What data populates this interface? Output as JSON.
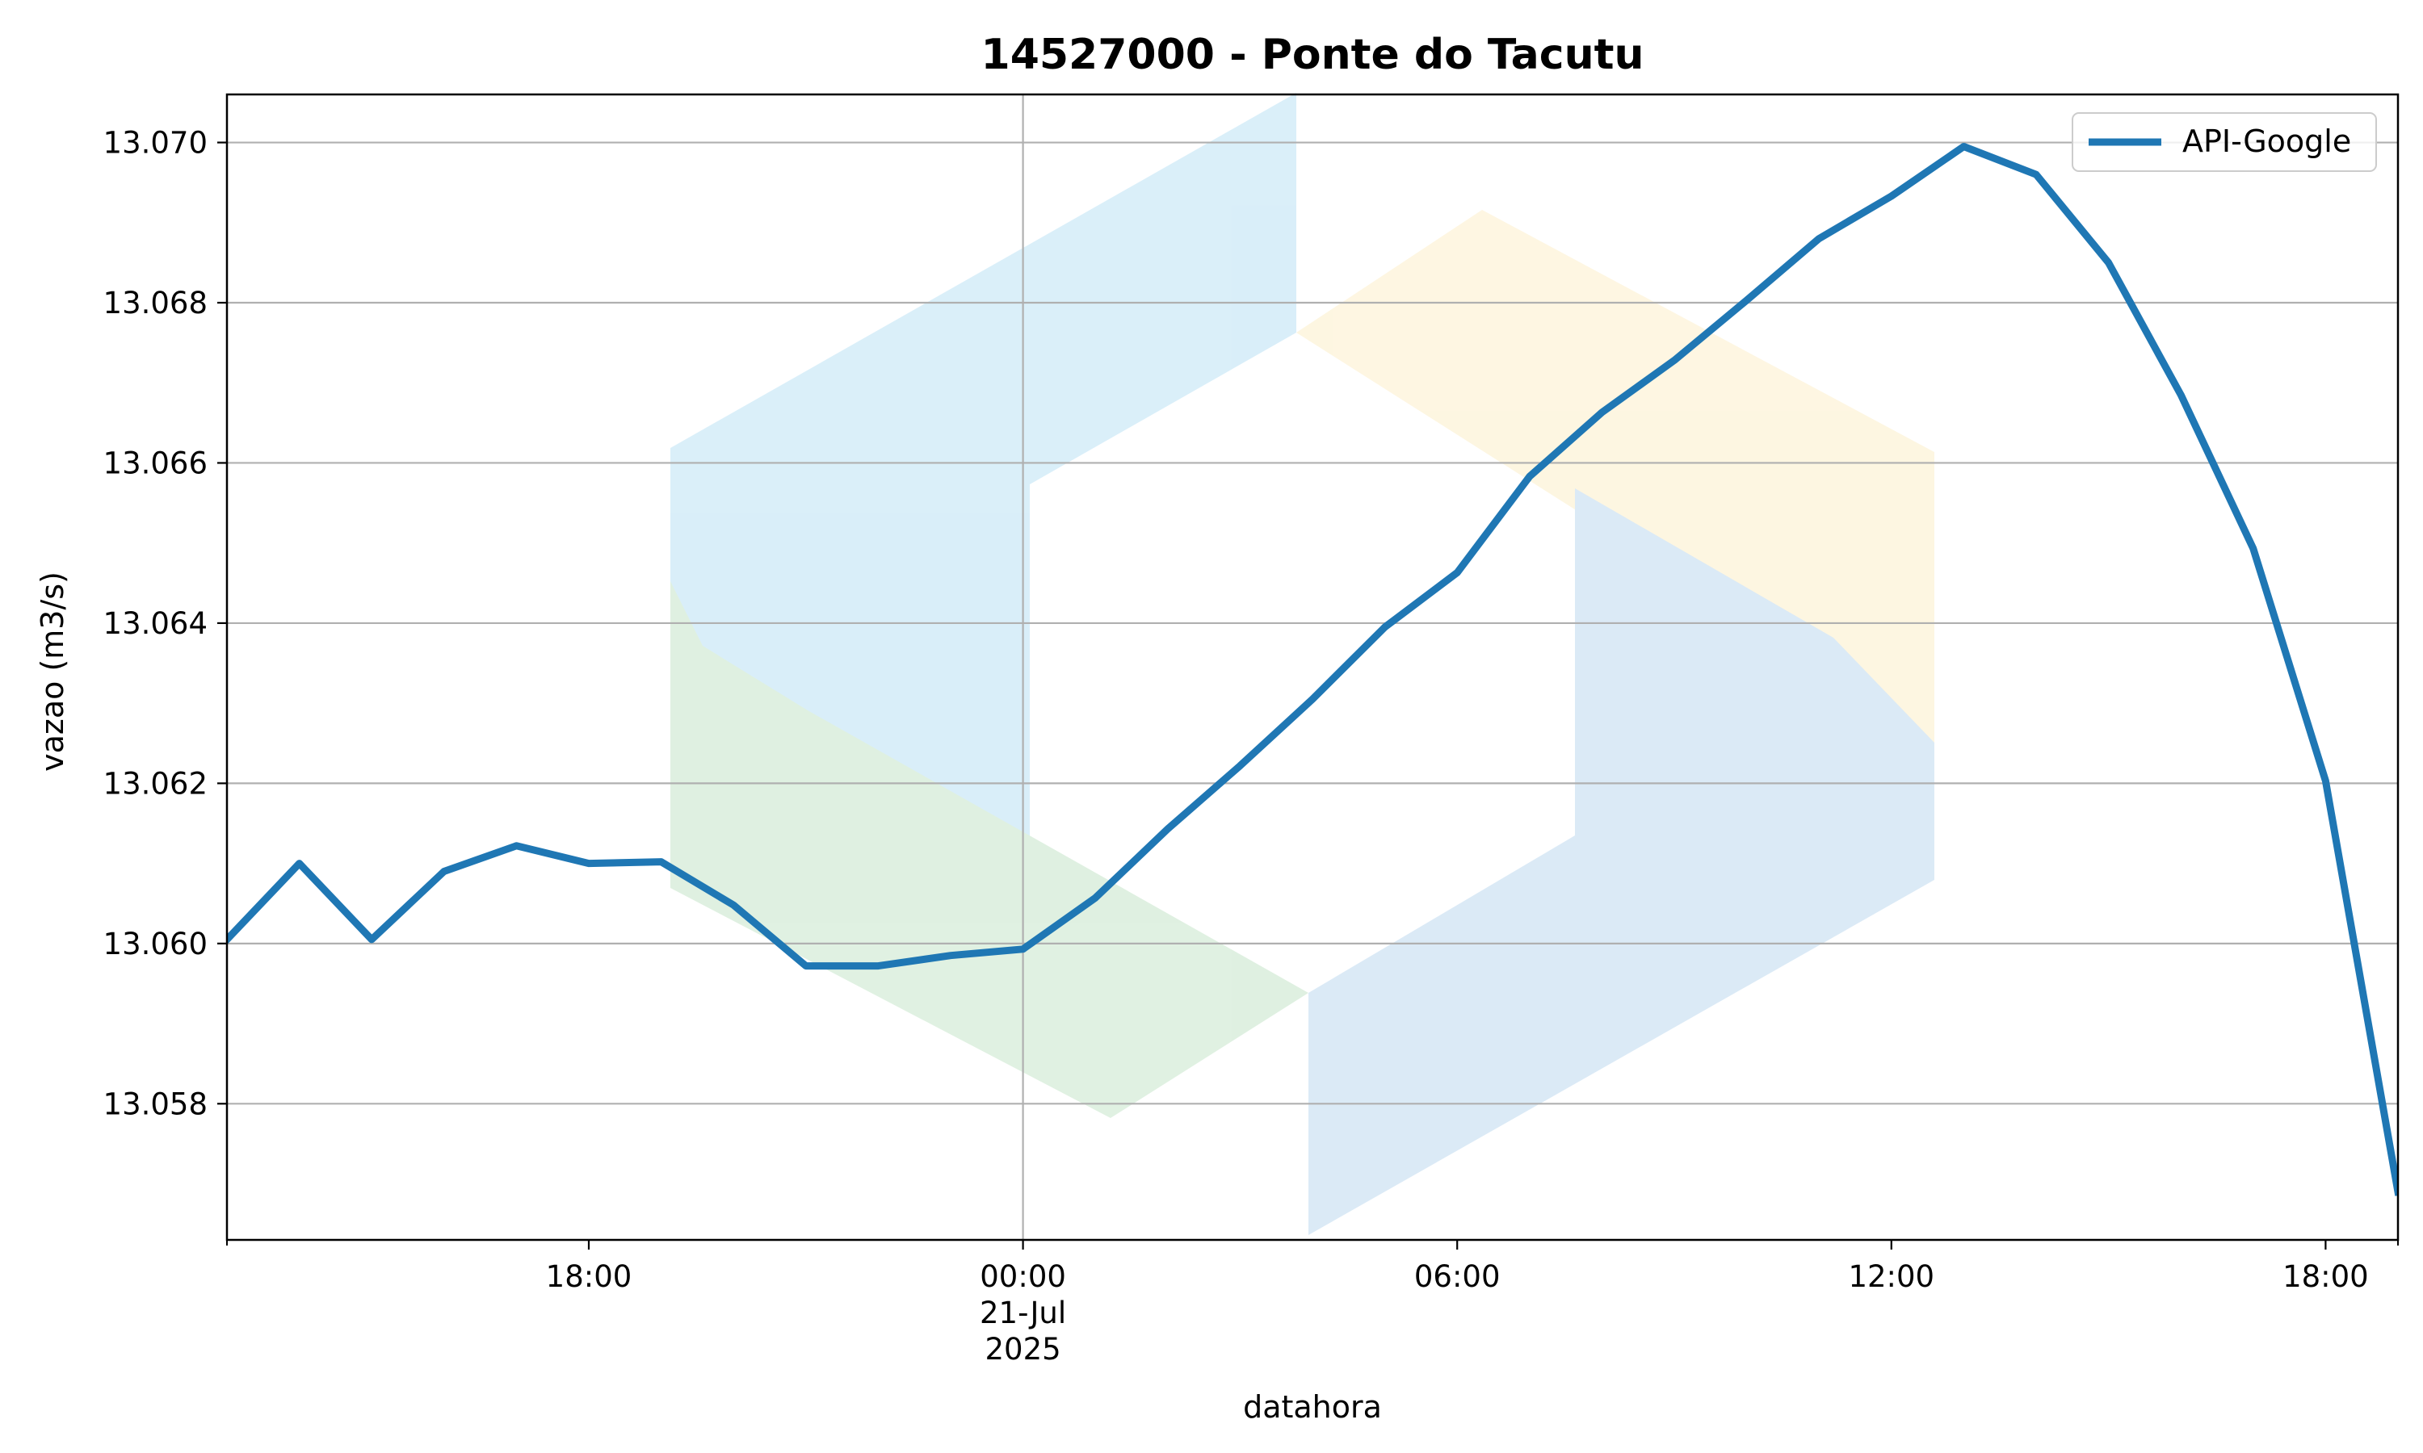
{
  "chart_data": {
    "type": "line",
    "title": "14527000 - Ponte do Tacutu",
    "xlabel": "datahora",
    "ylabel": "vazao (m3/s)",
    "xlim": [
      "2025-07-20T13:00",
      "2025-07-21T19:00"
    ],
    "ylim": [
      13.0563,
      13.0706
    ],
    "grid": true,
    "legend_position": "top-right",
    "x_ticks": [
      {
        "x": "2025-07-20T18:00",
        "lines": [
          "18:00"
        ]
      },
      {
        "x": "2025-07-21T00:00",
        "lines": [
          "00:00",
          "21-Jul",
          "2025"
        ]
      },
      {
        "x": "2025-07-21T06:00",
        "lines": [
          "06:00"
        ]
      },
      {
        "x": "2025-07-21T12:00",
        "lines": [
          "12:00"
        ]
      },
      {
        "x": "2025-07-21T18:00",
        "lines": [
          "18:00"
        ]
      }
    ],
    "y_ticks": [
      13.058,
      13.06,
      13.062,
      13.064,
      13.066,
      13.068,
      13.07
    ],
    "series": [
      {
        "name": "API-Google",
        "color": "#1f77b4",
        "points": [
          [
            "2025-07-20T13:00",
            13.06005
          ],
          [
            "2025-07-20T14:00",
            13.061
          ],
          [
            "2025-07-20T15:00",
            13.06005
          ],
          [
            "2025-07-20T16:00",
            13.0609
          ],
          [
            "2025-07-20T17:00",
            13.06122
          ],
          [
            "2025-07-20T18:00",
            13.061
          ],
          [
            "2025-07-20T19:00",
            13.06102
          ],
          [
            "2025-07-20T20:00",
            13.06048
          ],
          [
            "2025-07-20T21:00",
            13.05972
          ],
          [
            "2025-07-20T22:00",
            13.05972
          ],
          [
            "2025-07-20T23:00",
            13.05985
          ],
          [
            "2025-07-21T00:00",
            13.05993
          ],
          [
            "2025-07-21T01:00",
            13.06057
          ],
          [
            "2025-07-21T02:00",
            13.06143
          ],
          [
            "2025-07-21T03:00",
            13.06222
          ],
          [
            "2025-07-21T04:00",
            13.06305
          ],
          [
            "2025-07-21T05:00",
            13.06395
          ],
          [
            "2025-07-21T06:00",
            13.06463
          ],
          [
            "2025-07-21T07:00",
            13.06583
          ],
          [
            "2025-07-21T08:00",
            13.06663
          ],
          [
            "2025-07-21T09:00",
            13.06728
          ],
          [
            "2025-07-21T10:00",
            13.06803
          ],
          [
            "2025-07-21T11:00",
            13.0688
          ],
          [
            "2025-07-21T12:00",
            13.06933
          ],
          [
            "2025-07-21T13:00",
            13.06995
          ],
          [
            "2025-07-21T14:00",
            13.0696
          ],
          [
            "2025-07-21T15:00",
            13.0685
          ],
          [
            "2025-07-21T16:00",
            13.06685
          ],
          [
            "2025-07-21T17:00",
            13.06493
          ],
          [
            "2025-07-21T18:00",
            13.06203
          ],
          [
            "2025-07-21T19:00",
            13.0569
          ]
        ]
      }
    ]
  },
  "watermark": {
    "icon": "hexagon-logo-watermark",
    "colors": [
      "#cde9f7",
      "#fdf3d8",
      "#d5ecd8",
      "#cfe3f3"
    ]
  }
}
